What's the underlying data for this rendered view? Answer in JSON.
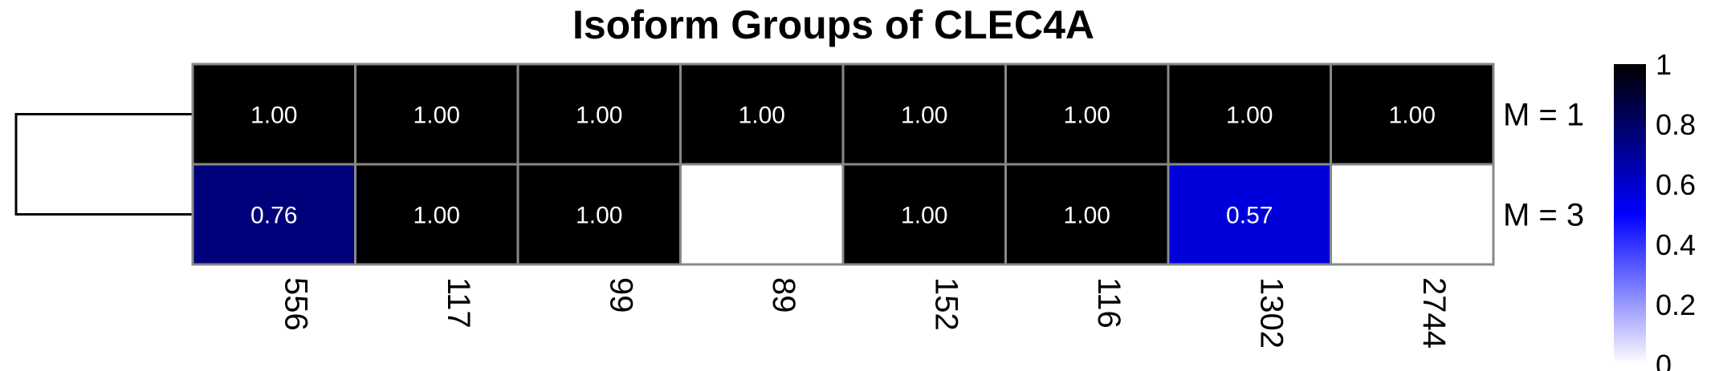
{
  "chart_data": {
    "type": "heatmap",
    "title": "Isoform Groups of CLEC4A",
    "rows": [
      "M = 1",
      "M = 3"
    ],
    "columns": [
      "556",
      "117",
      "99",
      "89",
      "152",
      "116",
      "1302",
      "2744"
    ],
    "values": [
      [
        1.0,
        1.0,
        1.0,
        1.0,
        1.0,
        1.0,
        1.0,
        1.0
      ],
      [
        0.76,
        1.0,
        1.0,
        0,
        1.0,
        1.0,
        0.57,
        0
      ]
    ],
    "cell_labels": [
      [
        "1.00",
        "1.00",
        "1.00",
        "1.00",
        "1.00",
        "1.00",
        "1.00",
        "1.00"
      ],
      [
        "0.76",
        "1.00",
        "1.00",
        "",
        "1.00",
        "1.00",
        "0.57",
        ""
      ]
    ],
    "colorbar": {
      "range": [
        0,
        1
      ],
      "ticks": [
        "0",
        "0.2",
        "0.4",
        "0.6",
        "0.8",
        "1"
      ],
      "colors": [
        "#ffffff",
        "#0000ff",
        "#000000"
      ]
    },
    "row_dendrogram": true
  }
}
